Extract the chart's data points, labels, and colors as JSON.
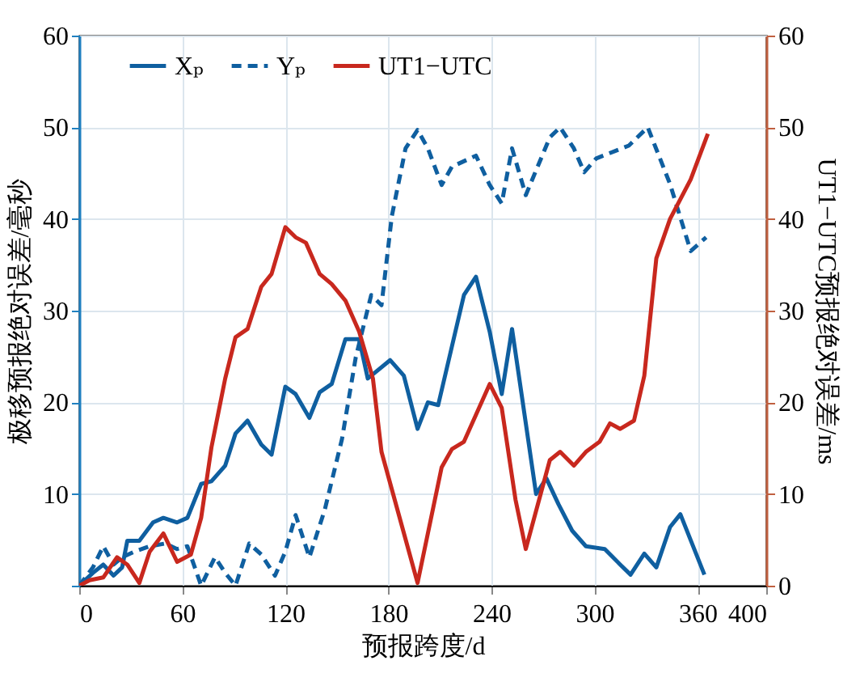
{
  "chart_data": {
    "type": "line",
    "xlabel": "预报跨度/d",
    "ylabel": "极移预报绝对误差/毫秒",
    "y2label": "UT1−UTC预报绝对误差/ms",
    "xlim": [
      0,
      400
    ],
    "xticks": [
      0,
      60,
      120,
      180,
      240,
      300,
      360,
      400
    ],
    "ylim": [
      0,
      60
    ],
    "yticks": [
      {
        "value": 0,
        "label": null
      },
      10,
      20,
      30,
      40,
      50,
      60
    ],
    "y2lim": [
      0,
      60
    ],
    "y2ticks": [
      0,
      10,
      20,
      30,
      40,
      50,
      60
    ],
    "grid": true,
    "legend": "top",
    "marker": "none",
    "series": [
      {
        "name": "Xₚ",
        "color": "#0f5fa0",
        "line_style": "solid",
        "x": [
          0,
          8,
          14,
          20,
          25,
          28,
          35,
          43,
          49,
          57,
          63,
          71,
          77,
          85,
          91,
          98,
          106,
          112,
          120,
          126,
          134,
          140,
          147,
          155,
          163,
          168,
          181,
          189,
          197,
          203,
          209,
          224,
          231,
          239,
          246,
          252,
          258,
          266,
          272,
          279,
          287,
          295,
          306,
          315,
          321,
          329,
          336,
          344,
          350,
          364
        ],
        "values": [
          0,
          1.4,
          2.3,
          1.1,
          2,
          4.9,
          4.9,
          6.9,
          7.4,
          6.9,
          7.4,
          11.1,
          11.4,
          13.1,
          16.6,
          18,
          15.4,
          14.3,
          21.7,
          20.9,
          18.3,
          21.1,
          22,
          26.9,
          26.9,
          22.6,
          24.6,
          22.9,
          17.1,
          20,
          19.7,
          31.7,
          33.7,
          27.7,
          20.9,
          28,
          20.3,
          10,
          11.7,
          8.9,
          6,
          4.3,
          4,
          2.3,
          1.2,
          3.5,
          2,
          6.4,
          7.8,
          1.2
        ]
      },
      {
        "name": "Yₚ",
        "color": "#0f5fa0",
        "line_style": "dashed",
        "x": [
          0,
          8,
          14,
          20,
          25,
          32,
          41,
          50,
          57,
          63,
          71,
          79,
          85,
          91,
          99,
          106,
          114,
          120,
          126,
          134,
          143,
          153,
          161,
          170,
          176,
          182,
          190,
          197,
          203,
          211,
          217,
          231,
          239,
          246,
          252,
          260,
          274,
          280,
          288,
          294,
          301,
          320,
          331,
          344,
          356,
          365
        ],
        "values": [
          0,
          2,
          4.3,
          2.3,
          3.1,
          3.7,
          4.3,
          4.6,
          4,
          4.3,
          0,
          3.1,
          1.4,
          0,
          4.6,
          3.4,
          1.1,
          3.7,
          7.7,
          3.1,
          8.3,
          16,
          24.9,
          31.7,
          30.6,
          40.3,
          47.7,
          49.7,
          47.7,
          43.7,
          45.7,
          46.9,
          43.7,
          41.7,
          47.7,
          42.6,
          48.9,
          50,
          47.7,
          45.1,
          46.6,
          48,
          50,
          43.8,
          36.5,
          38
        ]
      },
      {
        "name": "UT1−UTC",
        "color": "#c8281e",
        "line_style": "solid",
        "axis": "y2",
        "x": [
          0,
          6,
          14,
          22,
          28,
          35,
          41,
          49,
          57,
          65,
          71,
          77,
          85,
          91,
          98,
          106,
          112,
          120,
          126,
          132,
          140,
          147,
          155,
          163,
          171,
          176,
          197,
          211,
          217,
          224,
          239,
          246,
          254,
          260,
          274,
          280,
          288,
          295,
          303,
          309,
          315,
          323,
          329,
          336,
          344,
          356,
          366
        ],
        "values": [
          0,
          0.6,
          0.9,
          3.1,
          2.3,
          0.3,
          3.7,
          5.7,
          2.6,
          3.4,
          7.4,
          15.1,
          22.6,
          27.1,
          28,
          32.6,
          34,
          39.1,
          38,
          37.4,
          34,
          32.9,
          31.1,
          27.7,
          22.6,
          14.6,
          0.3,
          12.9,
          14.9,
          15.7,
          22,
          19.4,
          9.4,
          4,
          13.7,
          14.6,
          13.1,
          14.6,
          15.7,
          17.7,
          17.1,
          18,
          22.9,
          35.7,
          40,
          44.3,
          49.3
        ]
      }
    ]
  }
}
